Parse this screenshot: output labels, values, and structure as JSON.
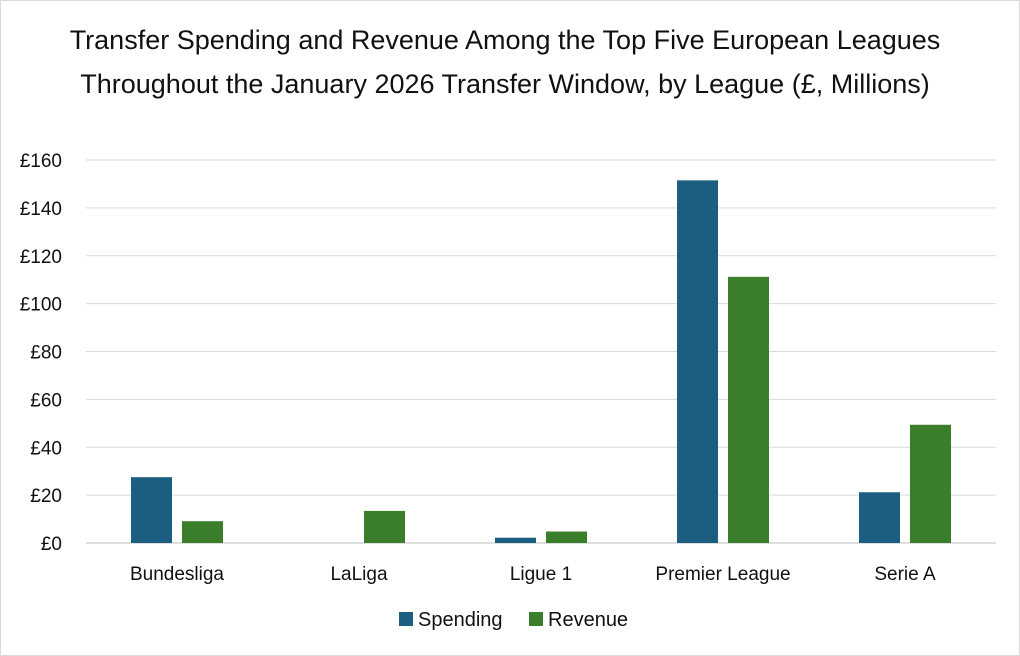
{
  "chart_data": {
    "type": "bar",
    "title": "Transfer Spending and Revenue Among the Top Five European Leagues Throughout the January 2026 Transfer Window, by League (£, Millions)",
    "categories": [
      "Bundesliga",
      "LaLiga",
      "Ligue 1",
      "Premier League",
      "Serie A"
    ],
    "series": [
      {
        "name": "Spending",
        "color": "#1b5e7f",
        "values": [
          27.5,
          0,
          2.2,
          151.5,
          21.2
        ]
      },
      {
        "name": "Revenue",
        "color": "#3a7d2a",
        "values": [
          9.1,
          13.4,
          4.8,
          111.2,
          49.4
        ]
      }
    ],
    "ylim": [
      0,
      160
    ],
    "yticks": [
      0,
      20,
      40,
      60,
      80,
      100,
      120,
      140,
      160
    ],
    "ytick_labels": [
      "£0",
      "£20",
      "£40",
      "£60",
      "£80",
      "£100",
      "£120",
      "£140",
      "£160"
    ],
    "xlabel": "",
    "ylabel": "",
    "grid": true,
    "legend": "bottom"
  }
}
